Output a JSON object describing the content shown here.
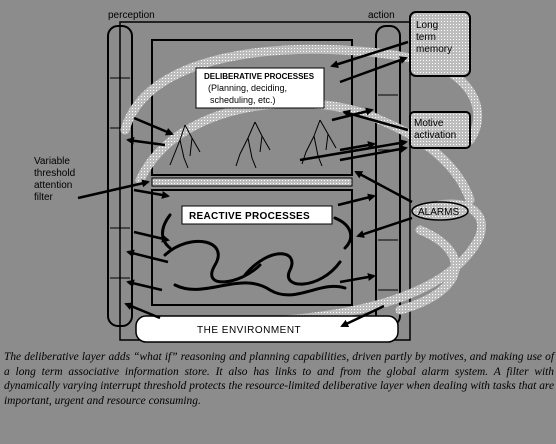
{
  "labels": {
    "perception": "perception",
    "action": "action",
    "long_term_memory": [
      "Long",
      "term",
      "memory"
    ],
    "motive_activation": [
      "Motive",
      "activation"
    ],
    "deliberative_title": "DELIBERATIVE PROCESSES",
    "deliberative_sub": [
      "(Planning, deciding,",
      "scheduling, etc.)"
    ],
    "reactive": "REACTIVE PROCESSES",
    "alarms": "ALARMS",
    "environment": "THE ENVIRONMENT",
    "filter": [
      "Variable",
      "threshold",
      "attention",
      "filter"
    ]
  },
  "caption": "The deliberative layer adds “what if” reasoning and planning capabilities, driven partly by motives, and making use of a long term associative information store.  It also has links to and from the global alarm system.  A filter with dynamically varying interrupt threshold protects the resource-limited deliberative layer when dealing with tasks that are important, urgent and resource consuming.",
  "colors": {
    "background": "#8c8c8c",
    "stroke": "#000000",
    "box_fill": "#ffffff"
  }
}
